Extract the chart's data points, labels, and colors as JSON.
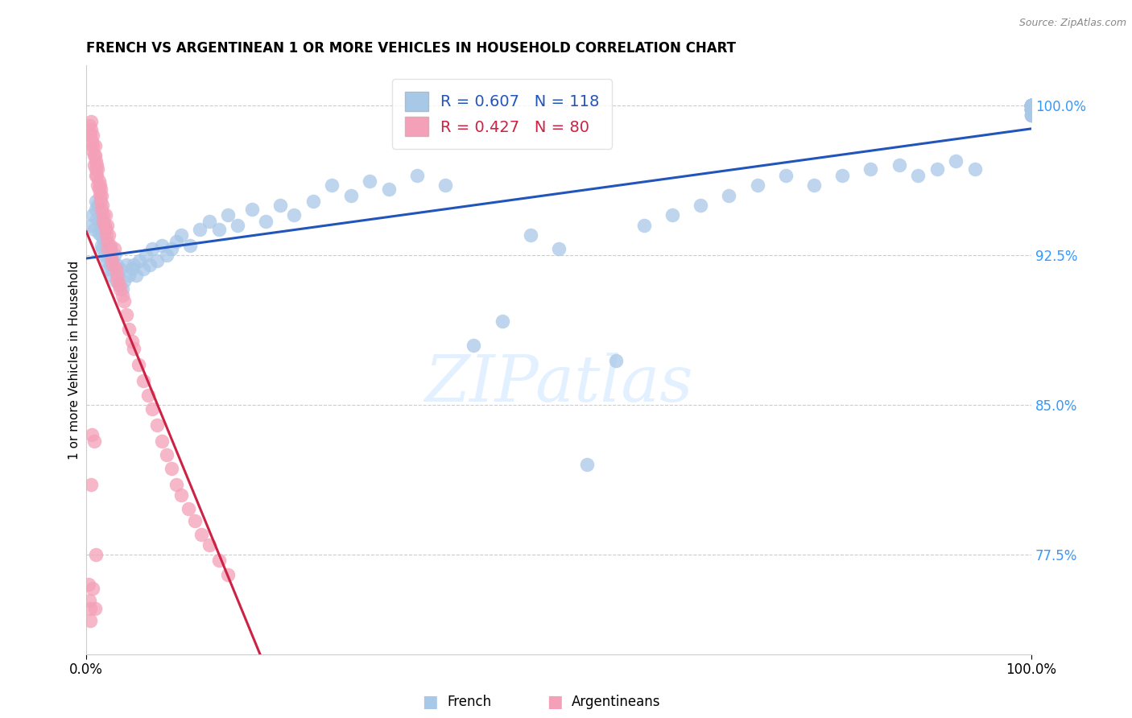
{
  "title": "FRENCH VS ARGENTINEAN 1 OR MORE VEHICLES IN HOUSEHOLD CORRELATION CHART",
  "source": "Source: ZipAtlas.com",
  "ylabel": "1 or more Vehicles in Household",
  "ytick_values": [
    0.775,
    0.85,
    0.925,
    1.0
  ],
  "xmin": 0.0,
  "xmax": 1.0,
  "ymin": 0.725,
  "ymax": 1.02,
  "french_color": "#a8c8e8",
  "argentinean_color": "#f4a0b8",
  "french_line_color": "#2255bb",
  "argentinean_line_color": "#cc2244",
  "legend_blue_text_color": "#2255bb",
  "legend_pink_text_color": "#cc2244",
  "french_R": 0.607,
  "french_N": 118,
  "argentinean_R": 0.427,
  "argentinean_N": 80,
  "french_x": [
    0.005,
    0.007,
    0.008,
    0.01,
    0.01,
    0.011,
    0.012,
    0.013,
    0.014,
    0.015,
    0.015,
    0.016,
    0.016,
    0.017,
    0.018,
    0.018,
    0.019,
    0.02,
    0.02,
    0.021,
    0.022,
    0.022,
    0.023,
    0.024,
    0.025,
    0.025,
    0.026,
    0.027,
    0.028,
    0.03,
    0.031,
    0.032,
    0.033,
    0.035,
    0.036,
    0.038,
    0.04,
    0.042,
    0.045,
    0.048,
    0.05,
    0.053,
    0.056,
    0.06,
    0.063,
    0.067,
    0.07,
    0.075,
    0.08,
    0.085,
    0.09,
    0.095,
    0.1,
    0.11,
    0.12,
    0.13,
    0.14,
    0.15,
    0.16,
    0.175,
    0.19,
    0.205,
    0.22,
    0.24,
    0.26,
    0.28,
    0.3,
    0.32,
    0.35,
    0.38,
    0.41,
    0.44,
    0.47,
    0.5,
    0.53,
    0.56,
    0.59,
    0.62,
    0.65,
    0.68,
    0.71,
    0.74,
    0.77,
    0.8,
    0.83,
    0.86,
    0.88,
    0.9,
    0.92,
    0.94,
    1.0,
    1.0,
    1.0,
    1.0,
    1.0,
    1.0,
    1.0,
    1.0,
    1.0,
    1.0,
    1.0,
    1.0,
    1.0,
    1.0,
    1.0,
    1.0,
    1.0,
    1.0,
    1.0,
    1.0,
    1.0,
    1.0,
    1.0,
    1.0,
    1.0,
    1.0,
    1.0,
    1.0
  ],
  "french_y": [
    0.94,
    0.945,
    0.938,
    0.952,
    0.948,
    0.943,
    0.95,
    0.936,
    0.942,
    0.938,
    0.945,
    0.93,
    0.935,
    0.928,
    0.94,
    0.933,
    0.925,
    0.932,
    0.938,
    0.928,
    0.922,
    0.93,
    0.918,
    0.925,
    0.92,
    0.928,
    0.915,
    0.922,
    0.918,
    0.925,
    0.912,
    0.92,
    0.915,
    0.91,
    0.918,
    0.908,
    0.912,
    0.92,
    0.915,
    0.918,
    0.92,
    0.915,
    0.922,
    0.918,
    0.925,
    0.92,
    0.928,
    0.922,
    0.93,
    0.925,
    0.928,
    0.932,
    0.935,
    0.93,
    0.938,
    0.942,
    0.938,
    0.945,
    0.94,
    0.948,
    0.942,
    0.95,
    0.945,
    0.952,
    0.96,
    0.955,
    0.962,
    0.958,
    0.965,
    0.96,
    0.88,
    0.892,
    0.935,
    0.928,
    0.82,
    0.872,
    0.94,
    0.945,
    0.95,
    0.955,
    0.96,
    0.965,
    0.96,
    0.965,
    0.968,
    0.97,
    0.965,
    0.968,
    0.972,
    0.968,
    0.995,
    0.998,
    1.0,
    1.0,
    1.0,
    1.0,
    1.0,
    0.998,
    0.995,
    0.998,
    1.0,
    1.0,
    1.0,
    1.0,
    0.998,
    1.0,
    1.0,
    0.998,
    1.0,
    1.0,
    0.995,
    0.998,
    1.0,
    1.0,
    1.0,
    0.998,
    1.0,
    1.0
  ],
  "argentinean_x": [
    0.003,
    0.004,
    0.005,
    0.005,
    0.006,
    0.006,
    0.007,
    0.007,
    0.008,
    0.008,
    0.009,
    0.009,
    0.01,
    0.01,
    0.01,
    0.011,
    0.011,
    0.012,
    0.012,
    0.013,
    0.013,
    0.014,
    0.014,
    0.015,
    0.015,
    0.016,
    0.016,
    0.017,
    0.018,
    0.018,
    0.019,
    0.02,
    0.02,
    0.021,
    0.022,
    0.022,
    0.023,
    0.024,
    0.025,
    0.026,
    0.027,
    0.028,
    0.03,
    0.031,
    0.032,
    0.033,
    0.035,
    0.036,
    0.038,
    0.04,
    0.042,
    0.045,
    0.048,
    0.05,
    0.055,
    0.06,
    0.065,
    0.07,
    0.075,
    0.08,
    0.085,
    0.09,
    0.095,
    0.1,
    0.108,
    0.115,
    0.122,
    0.13,
    0.14,
    0.15,
    0.002,
    0.003,
    0.004,
    0.004,
    0.005,
    0.006,
    0.007,
    0.008,
    0.009,
    0.01
  ],
  "argentinean_y": [
    0.99,
    0.985,
    0.992,
    0.988,
    0.982,
    0.978,
    0.985,
    0.98,
    0.975,
    0.97,
    0.98,
    0.975,
    0.972,
    0.968,
    0.965,
    0.97,
    0.965,
    0.96,
    0.968,
    0.962,
    0.958,
    0.955,
    0.96,
    0.958,
    0.952,
    0.948,
    0.955,
    0.95,
    0.945,
    0.942,
    0.94,
    0.938,
    0.945,
    0.935,
    0.932,
    0.94,
    0.928,
    0.935,
    0.93,
    0.925,
    0.922,
    0.92,
    0.928,
    0.918,
    0.915,
    0.912,
    0.91,
    0.908,
    0.905,
    0.902,
    0.895,
    0.888,
    0.882,
    0.878,
    0.87,
    0.862,
    0.855,
    0.848,
    0.84,
    0.832,
    0.825,
    0.818,
    0.81,
    0.805,
    0.798,
    0.792,
    0.785,
    0.78,
    0.772,
    0.765,
    0.76,
    0.752,
    0.748,
    0.742,
    0.81,
    0.835,
    0.758,
    0.832,
    0.748,
    0.775
  ]
}
